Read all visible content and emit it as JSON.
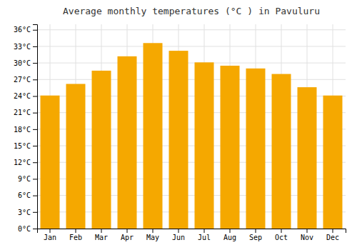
{
  "chart_data": {
    "type": "bar",
    "title": "Average monthly temperatures (°C ) in Pavuluru",
    "categories": [
      "Jan",
      "Feb",
      "Mar",
      "Apr",
      "May",
      "Jun",
      "Jul",
      "Aug",
      "Sep",
      "Oct",
      "Nov",
      "Dec"
    ],
    "values": [
      24.1,
      26.2,
      28.6,
      31.2,
      33.6,
      32.2,
      30.1,
      29.5,
      29.0,
      28.0,
      25.6,
      24.1
    ],
    "color": "#F5A800",
    "ylim": [
      0,
      37
    ],
    "yticks": [
      {
        "value": 0,
        "label": "0°C"
      },
      {
        "value": 3,
        "label": "3°C"
      },
      {
        "value": 6,
        "label": "6°C"
      },
      {
        "value": 9,
        "label": "9°C"
      },
      {
        "value": 12,
        "label": "12°C"
      },
      {
        "value": 15,
        "label": "15°C"
      },
      {
        "value": 18,
        "label": "18°C"
      },
      {
        "value": 21,
        "label": "21°C"
      },
      {
        "value": 24,
        "label": "24°C"
      },
      {
        "value": 27,
        "label": "27°C"
      },
      {
        "value": 30,
        "label": "30°C"
      },
      {
        "value": 33,
        "label": "33°C"
      },
      {
        "value": 36,
        "label": "36°C"
      }
    ],
    "grid": true
  }
}
